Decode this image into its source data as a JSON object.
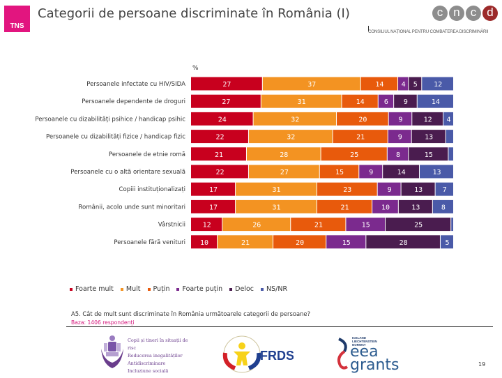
{
  "header": {
    "logo_text": "TNS",
    "title": "Categorii de persoane discriminate în România (I)",
    "partner_logo": {
      "letters": [
        "c",
        "n",
        "c",
        "d"
      ],
      "subtitle": "CONSILIUL NAȚIONAL PENTRU COMBATEREA DISCRIMINĂRII"
    }
  },
  "chart_data": {
    "type": "bar",
    "orientation": "horizontal",
    "stacked": true,
    "unit_label": "%",
    "categories": [
      "Persoanele infectate cu HIV/SIDA",
      "Persoanele dependente de droguri",
      "Persoanele cu dizabilități psihice / handicap psihic",
      "Persoanele cu dizabilități fizice / handicap fizic",
      "Persoanele de etnie romă",
      "Persoanele cu o altă orientare sexuală",
      "Copiii instituționalizați",
      "Românii, acolo unde sunt minoritari",
      "Vârstnicii",
      "Persoanele fără venituri"
    ],
    "series": [
      {
        "name": "Foarte mult",
        "color": "#c8001e",
        "values": [
          27,
          27,
          24,
          22,
          21,
          22,
          17,
          17,
          12,
          10
        ]
      },
      {
        "name": "Mult",
        "color": "#f39322",
        "values": [
          37,
          31,
          32,
          32,
          28,
          27,
          31,
          31,
          26,
          21
        ]
      },
      {
        "name": "Puțin",
        "color": "#e85a0c",
        "values": [
          14,
          14,
          20,
          21,
          25,
          15,
          23,
          21,
          21,
          20
        ]
      },
      {
        "name": "Foarte puțin",
        "color": "#7b2a8e",
        "values": [
          4,
          6,
          9,
          9,
          8,
          9,
          9,
          10,
          15,
          15
        ]
      },
      {
        "name": "Deloc",
        "color": "#4a1c4f",
        "values": [
          5,
          9,
          12,
          13,
          15,
          14,
          13,
          13,
          25,
          28
        ]
      },
      {
        "name": "NS/NR",
        "color": "#4a5aa8",
        "values": [
          12,
          14,
          4,
          3,
          2,
          13,
          7,
          8,
          1,
          5
        ]
      }
    ],
    "label_hidden_below": 4,
    "xlim": [
      0,
      100
    ],
    "legend_position": "bottom-left",
    "grid": false
  },
  "legend": [
    {
      "label": "Foarte mult",
      "color": "#c8001e"
    },
    {
      "label": "Mult",
      "color": "#f39322"
    },
    {
      "label": "Puțin",
      "color": "#e85a0c"
    },
    {
      "label": "Foarte puțin",
      "color": "#7b2a8e"
    },
    {
      "label": "Deloc",
      "color": "#4a1c4f"
    },
    {
      "label": "NS/NR",
      "color": "#4a5aa8"
    }
  ],
  "footnote": {
    "question": "A5. Cât de mult sunt discriminate în România următoarele categorii de persoane?",
    "base": "Baza: 1406 respondenți"
  },
  "footer": {
    "logo1_lines": [
      "Copii și tineri în situații de risc",
      "Reducerea inegalităților",
      "Antidiscriminare",
      "Incluziune socială"
    ],
    "logo2_text": "FRDS",
    "logo3_small": [
      "ICELAND",
      "LIECHTENSTEIN",
      "NORWAY"
    ],
    "logo3_big": [
      "eea",
      "grants"
    ],
    "page_number": "19"
  }
}
